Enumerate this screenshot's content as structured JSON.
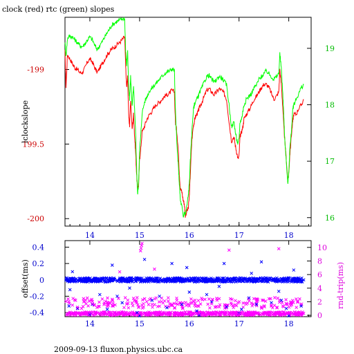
{
  "title": "clock (red) rtc (green) slopes",
  "footer": "2009-09-13 fluxon.physics.ubc.ca",
  "chart_data": [
    {
      "type": "line",
      "ylabel_left": "lclockslope",
      "xlim": [
        13.5,
        18.45
      ],
      "ylim_left": [
        -200.05,
        -198.65
      ],
      "ylim_right": [
        15.85,
        19.55
      ],
      "x_ticks": [
        "14",
        "15",
        "16",
        "17",
        "18"
      ],
      "y_ticks_left": [
        "-199",
        "199.5",
        "-200"
      ],
      "y_ticks_right": [
        "19",
        "18",
        "17",
        "16"
      ],
      "series": [
        {
          "name": "clock",
          "color": "#ff0000",
          "axis": "left",
          "x": [
            13.5,
            13.52,
            13.55,
            13.6,
            13.65,
            13.7,
            13.75,
            13.8,
            13.85,
            13.9,
            13.95,
            14.0,
            14.05,
            14.1,
            14.15,
            14.2,
            14.25,
            14.3,
            14.35,
            14.4,
            14.45,
            14.5,
            14.55,
            14.6,
            14.65,
            14.7,
            14.72,
            14.74,
            14.76,
            14.78,
            14.8,
            14.82,
            14.85,
            14.88,
            14.9,
            14.92,
            14.94,
            14.96,
            14.98,
            15.0,
            15.02,
            15.05,
            15.1,
            15.15,
            15.2,
            15.25,
            15.3,
            15.35,
            15.4,
            15.45,
            15.5,
            15.55,
            15.6,
            15.65,
            15.7,
            15.72,
            15.75,
            15.78,
            15.8,
            15.82,
            15.85,
            15.88,
            15.9,
            15.92,
            15.95,
            15.98,
            16.0,
            16.02,
            16.05,
            16.08,
            16.1,
            16.12,
            16.15,
            16.18,
            16.2,
            16.25,
            16.3,
            16.35,
            16.4,
            16.45,
            16.5,
            16.55,
            16.6,
            16.65,
            16.7,
            16.75,
            16.8,
            16.85,
            16.9,
            16.92,
            16.95,
            16.98,
            17.0,
            17.02,
            17.05,
            17.08,
            17.1,
            17.15,
            17.2,
            17.25,
            17.3,
            17.35,
            17.4,
            17.45,
            17.5,
            17.55,
            17.6,
            17.65,
            17.7,
            17.75,
            17.8,
            17.82,
            17.85,
            17.88,
            17.9,
            17.92,
            17.95,
            17.98,
            18.0,
            18.02,
            18.05,
            18.08,
            18.1,
            18.15,
            18.2,
            18.25,
            18.3
          ],
          "y": [
            -198.88,
            -199.12,
            -198.9,
            -198.93,
            -198.96,
            -198.99,
            -199.0,
            -199.02,
            -199.02,
            -198.99,
            -198.95,
            -198.93,
            -198.95,
            -198.99,
            -199.02,
            -198.99,
            -198.96,
            -198.93,
            -198.9,
            -198.88,
            -198.86,
            -198.85,
            -198.83,
            -198.82,
            -198.8,
            -198.78,
            -198.98,
            -199.12,
            -199.05,
            -199.3,
            -199.38,
            -199.2,
            -199.4,
            -199.3,
            -199.45,
            -199.55,
            -199.7,
            -199.8,
            -199.78,
            -199.6,
            -199.55,
            -199.42,
            -199.38,
            -199.33,
            -199.3,
            -199.28,
            -199.25,
            -199.23,
            -199.22,
            -199.2,
            -199.18,
            -199.17,
            -199.16,
            -199.14,
            -199.15,
            -199.35,
            -199.42,
            -199.55,
            -199.7,
            -199.8,
            -199.82,
            -199.88,
            -199.9,
            -199.98,
            -199.95,
            -199.93,
            -199.85,
            -199.7,
            -199.48,
            -199.38,
            -199.35,
            -199.32,
            -199.3,
            -199.28,
            -199.26,
            -199.22,
            -199.18,
            -199.14,
            -199.13,
            -199.15,
            -199.17,
            -199.15,
            -199.13,
            -199.14,
            -199.16,
            -199.2,
            -199.35,
            -199.48,
            -199.45,
            -199.5,
            -199.55,
            -199.6,
            -199.58,
            -199.45,
            -199.42,
            -199.38,
            -199.33,
            -199.3,
            -199.27,
            -199.24,
            -199.2,
            -199.18,
            -199.15,
            -199.12,
            -199.1,
            -199.1,
            -199.12,
            -199.16,
            -199.2,
            -199.18,
            -199.15,
            -199.0,
            -199.1,
            -199.25,
            -199.38,
            -199.48,
            -199.6,
            -199.75,
            -199.7,
            -199.58,
            -199.45,
            -199.35,
            -199.3,
            -199.3,
            -199.26,
            -199.24,
            -199.2
          ]
        },
        {
          "name": "rtc",
          "color": "#00ff00",
          "axis": "right",
          "x": [
            13.5,
            13.52,
            13.55,
            13.6,
            13.65,
            13.7,
            13.75,
            13.8,
            13.85,
            13.9,
            13.95,
            14.0,
            14.05,
            14.1,
            14.15,
            14.2,
            14.25,
            14.3,
            14.35,
            14.4,
            14.45,
            14.5,
            14.55,
            14.6,
            14.65,
            14.7,
            14.72,
            14.74,
            14.76,
            14.78,
            14.8,
            14.82,
            14.85,
            14.88,
            14.9,
            14.92,
            14.94,
            14.96,
            14.98,
            15.0,
            15.02,
            15.05,
            15.1,
            15.15,
            15.2,
            15.25,
            15.3,
            15.35,
            15.4,
            15.45,
            15.5,
            15.55,
            15.6,
            15.65,
            15.7,
            15.72,
            15.75,
            15.78,
            15.8,
            15.82,
            15.85,
            15.88,
            15.9,
            15.92,
            15.95,
            15.98,
            16.0,
            16.02,
            16.05,
            16.08,
            16.1,
            16.12,
            16.15,
            16.18,
            16.2,
            16.25,
            16.3,
            16.35,
            16.4,
            16.45,
            16.5,
            16.55,
            16.6,
            16.65,
            16.7,
            16.75,
            16.8,
            16.85,
            16.9,
            16.92,
            16.95,
            16.98,
            17.0,
            17.02,
            17.05,
            17.08,
            17.1,
            17.15,
            17.2,
            17.25,
            17.3,
            17.35,
            17.4,
            17.45,
            17.5,
            17.55,
            17.6,
            17.65,
            17.7,
            17.75,
            17.8,
            17.82,
            17.85,
            17.88,
            17.9,
            17.92,
            17.95,
            17.98,
            18.0,
            18.02,
            18.05,
            18.08,
            18.1,
            18.15,
            18.2,
            18.25,
            18.3
          ],
          "y": [
            19.12,
            18.85,
            19.18,
            19.22,
            19.2,
            19.15,
            19.1,
            19.05,
            19.03,
            19.08,
            19.15,
            19.2,
            19.15,
            19.05,
            18.98,
            19.05,
            19.12,
            19.2,
            19.28,
            19.35,
            19.42,
            19.45,
            19.48,
            19.5,
            19.52,
            19.53,
            18.95,
            18.7,
            18.95,
            18.3,
            18.1,
            18.5,
            18.0,
            18.3,
            17.9,
            17.5,
            16.9,
            16.4,
            16.6,
            17.2,
            17.4,
            17.85,
            18.05,
            18.15,
            18.25,
            18.3,
            18.35,
            18.4,
            18.45,
            18.5,
            18.55,
            18.58,
            18.6,
            18.63,
            18.62,
            17.9,
            17.3,
            16.9,
            16.6,
            16.3,
            16.2,
            16.0,
            16.1,
            16.05,
            16.2,
            16.4,
            16.6,
            17.0,
            17.5,
            17.9,
            18.0,
            18.05,
            18.1,
            18.15,
            18.2,
            18.3,
            18.4,
            18.5,
            18.52,
            18.45,
            18.4,
            18.45,
            18.5,
            18.48,
            18.42,
            18.35,
            18.0,
            17.6,
            17.7,
            17.55,
            17.4,
            17.3,
            17.4,
            17.7,
            17.75,
            17.9,
            18.0,
            18.1,
            18.15,
            18.2,
            18.3,
            18.35,
            18.45,
            18.5,
            18.55,
            18.6,
            18.55,
            18.5,
            18.45,
            18.5,
            18.55,
            18.9,
            18.65,
            18.2,
            17.8,
            17.4,
            17.0,
            16.6,
            16.8,
            17.2,
            17.5,
            17.9,
            18.0,
            18.1,
            18.2,
            18.3,
            18.35
          ]
        }
      ]
    },
    {
      "type": "scatter",
      "ylabel_left": "offset(ms)",
      "ylabel_right": "rnd-trip(ms)",
      "xlim": [
        13.5,
        18.45
      ],
      "ylim_left": [
        -0.45,
        0.48
      ],
      "ylim_right": [
        -0.2,
        11
      ],
      "x_ticks": [
        "14",
        "15",
        "16",
        "17",
        "18"
      ],
      "y_ticks_left": [
        "0.4",
        "0.2",
        "0",
        "-0.2",
        "-0.4"
      ],
      "y_ticks_right": [
        "10",
        "8",
        "6",
        "4",
        "2",
        "0"
      ],
      "series": [
        {
          "name": "offset",
          "color": "#0000ff",
          "marker": "x",
          "axis": "left",
          "x": [
            13.55,
            13.62,
            13.7,
            13.8,
            13.9,
            14.0,
            14.1,
            14.2,
            14.3,
            14.4,
            14.5,
            14.6,
            14.68,
            14.75,
            14.82,
            14.9,
            14.98,
            15.05,
            15.12,
            15.2,
            15.3,
            15.4,
            15.5,
            15.6,
            15.7,
            15.8,
            15.9,
            16.0,
            16.1,
            16.2,
            16.3,
            16.4,
            16.5,
            16.6,
            16.7,
            16.8,
            16.9,
            17.0,
            17.1,
            17.2,
            17.3,
            17.4,
            17.5,
            17.6,
            17.7,
            17.8,
            17.9,
            18.0,
            18.1,
            18.2,
            18.3,
            13.58,
            13.75,
            14.05,
            14.35,
            14.65,
            14.95,
            15.25,
            15.55,
            15.85,
            16.15,
            16.45,
            16.75,
            17.05,
            17.35,
            17.65,
            17.95,
            18.25,
            13.6,
            14.2,
            14.8,
            15.4,
            16.0,
            16.6,
            17.2,
            17.8,
            14.45,
            15.1,
            15.95,
            16.7,
            17.45,
            18.1,
            14.0,
            15.0,
            16.2,
            17.0,
            18.0,
            13.65,
            14.55,
            15.65,
            16.35,
            17.25,
            17.85
          ],
          "y": [
            0.0,
            0.01,
            -0.01,
            0.0,
            0.0,
            -0.01,
            0.01,
            0.0,
            0.0,
            -0.01,
            0.0,
            0.01,
            0.0,
            0.0,
            -0.01,
            0.0,
            0.01,
            0.0,
            0.0,
            -0.01,
            0.0,
            0.01,
            0.0,
            0.0,
            -0.01,
            0.0,
            0.01,
            0.0,
            0.0,
            -0.01,
            0.0,
            0.01,
            0.0,
            0.0,
            -0.01,
            0.0,
            0.0,
            0.01,
            0.0,
            -0.01,
            0.0,
            0.0,
            0.01,
            0.0,
            0.0,
            -0.01,
            0.0,
            0.0,
            0.01,
            0.0,
            0.0,
            -0.32,
            -0.35,
            -0.3,
            -0.36,
            -0.28,
            -0.4,
            -0.25,
            -0.34,
            -0.3,
            -0.38,
            -0.27,
            -0.33,
            -0.36,
            -0.3,
            -0.28,
            -0.35,
            -0.32,
            -0.12,
            -0.18,
            -0.1,
            -0.2,
            -0.15,
            -0.08,
            -0.22,
            -0.14,
            0.18,
            0.25,
            0.15,
            0.2,
            0.22,
            0.12,
            -0.42,
            -0.44,
            -0.43,
            -0.41,
            -0.44,
            0.1,
            -0.2,
            0.2,
            -0.18,
            0.08,
            -0.25
          ]
        },
        {
          "name": "rnd-trip",
          "color": "#ff00ff",
          "marker": "x",
          "axis": "right",
          "x": [
            13.6,
            13.7,
            13.8,
            13.9,
            14.0,
            14.1,
            14.2,
            14.3,
            14.4,
            14.5,
            14.6,
            14.7,
            14.8,
            14.9,
            15.0,
            15.1,
            15.2,
            15.3,
            15.4,
            15.5,
            15.6,
            15.7,
            15.8,
            15.9,
            16.0,
            16.1,
            16.2,
            16.3,
            16.4,
            16.5,
            16.6,
            16.7,
            16.8,
            16.9,
            17.0,
            17.1,
            17.2,
            17.3,
            17.4,
            17.5,
            17.6,
            17.7,
            17.8,
            17.9,
            18.0,
            18.1,
            18.2,
            18.3,
            13.65,
            14.05,
            14.45,
            14.85,
            15.25,
            15.65,
            16.05,
            16.45,
            16.85,
            17.25,
            17.65,
            18.05,
            14.25,
            14.95,
            15.75,
            16.55,
            17.35,
            18.15,
            15.02,
            15.03,
            15.04,
            15.05,
            16.8,
            17.8,
            15.3,
            14.6,
            13.75
          ],
          "y": [
            0.3,
            0.2,
            0.3,
            0.2,
            0.3,
            0.2,
            0.3,
            0.3,
            0.2,
            0.3,
            0.2,
            0.3,
            0.2,
            0.3,
            0.2,
            0.3,
            0.3,
            0.2,
            0.3,
            0.2,
            0.3,
            0.3,
            0.2,
            0.3,
            0.2,
            0.3,
            0.2,
            0.3,
            0.3,
            0.2,
            0.3,
            0.2,
            0.3,
            0.3,
            0.2,
            0.3,
            0.2,
            0.3,
            0.2,
            0.3,
            0.3,
            0.2,
            0.3,
            0.2,
            0.3,
            0.2,
            0.3,
            0.3,
            1.5,
            1.7,
            1.4,
            1.8,
            1.6,
            1.5,
            1.9,
            1.7,
            1.6,
            1.8,
            1.5,
            1.7,
            2.4,
            2.6,
            2.2,
            2.5,
            2.3,
            2.4,
            9.5,
            9.9,
            10.3,
            10.6,
            9.6,
            9.8,
            6.8,
            6.4,
            1.2
          ]
        }
      ]
    }
  ]
}
